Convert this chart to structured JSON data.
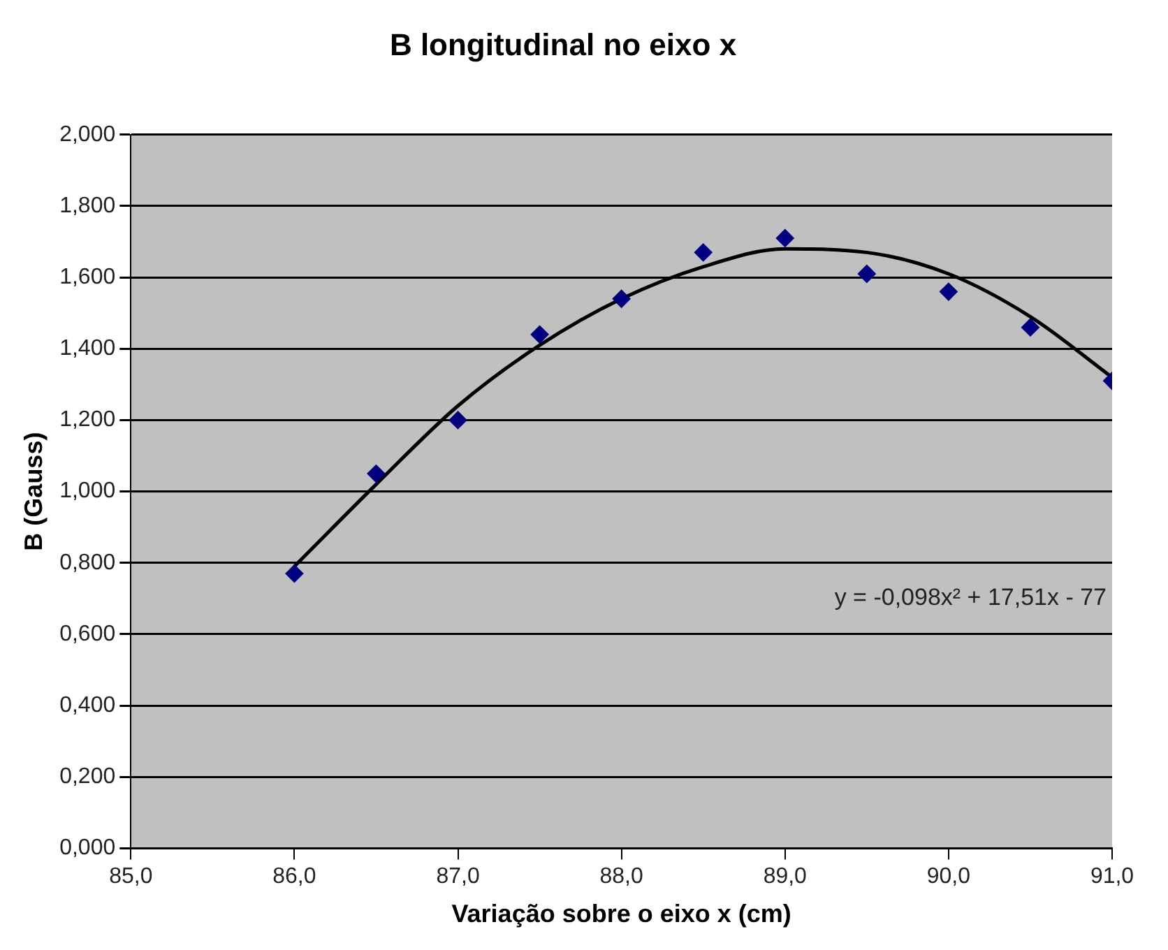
{
  "chart_data": {
    "type": "scatter",
    "title": "B longitudinal no eixo x",
    "xlabel": "Variação sobre o eixo x (cm)",
    "ylabel": "B (Gauss)",
    "x": [
      86.0,
      86.5,
      87.0,
      87.5,
      88.0,
      88.5,
      89.0,
      89.5,
      90.0,
      90.5,
      91.0
    ],
    "series": [
      {
        "color": "#000080",
        "values": [
          0.77,
          1.05,
          1.2,
          1.44,
          1.54,
          1.67,
          1.71,
          1.61,
          1.56,
          1.46,
          1.31
        ],
        "marker": "diamond"
      },
      {
        "type": "line",
        "color": "#000000",
        "x": [
          86.0,
          86.5,
          87.0,
          87.5,
          88.0,
          88.5,
          89.0,
          89.5,
          90.0,
          90.5,
          91.0
        ],
        "values": [
          0.79,
          1.02,
          1.24,
          1.41,
          1.54,
          1.63,
          1.68,
          1.67,
          1.61,
          1.49,
          1.32
        ],
        "marker": "none",
        "line_style": "solid"
      }
    ],
    "xlim": [
      85,
      91
    ],
    "xticks": [
      {
        "value": 85,
        "label": "85,0"
      },
      {
        "value": 86,
        "label": "86,0"
      },
      {
        "value": 87,
        "label": "87,0"
      },
      {
        "value": 88,
        "label": "88,0"
      },
      {
        "value": 89,
        "label": "89,0"
      },
      {
        "value": 90,
        "label": "90,0"
      },
      {
        "value": 91,
        "label": "91,0"
      }
    ],
    "ylim": [
      0,
      2
    ],
    "yticks": [
      {
        "value": 0,
        "label": "0,000"
      },
      {
        "value": 0.2,
        "label": "0,200"
      },
      {
        "value": 0.4,
        "label": "0,400"
      },
      {
        "value": 0.6,
        "label": "0,600"
      },
      {
        "value": 0.8,
        "label": "0,800"
      },
      {
        "value": 1.0,
        "label": "1,000"
      },
      {
        "value": 1.2,
        "label": "1,200"
      },
      {
        "value": 1.4,
        "label": "1,400"
      },
      {
        "value": 1.6,
        "label": "1,600"
      },
      {
        "value": 1.8,
        "label": "1,800"
      },
      {
        "value": 2.0,
        "label": "2,000"
      }
    ],
    "grid": "y",
    "legend": false,
    "annotations": [
      "y = -0,098x² + 17,51x - 77"
    ]
  }
}
